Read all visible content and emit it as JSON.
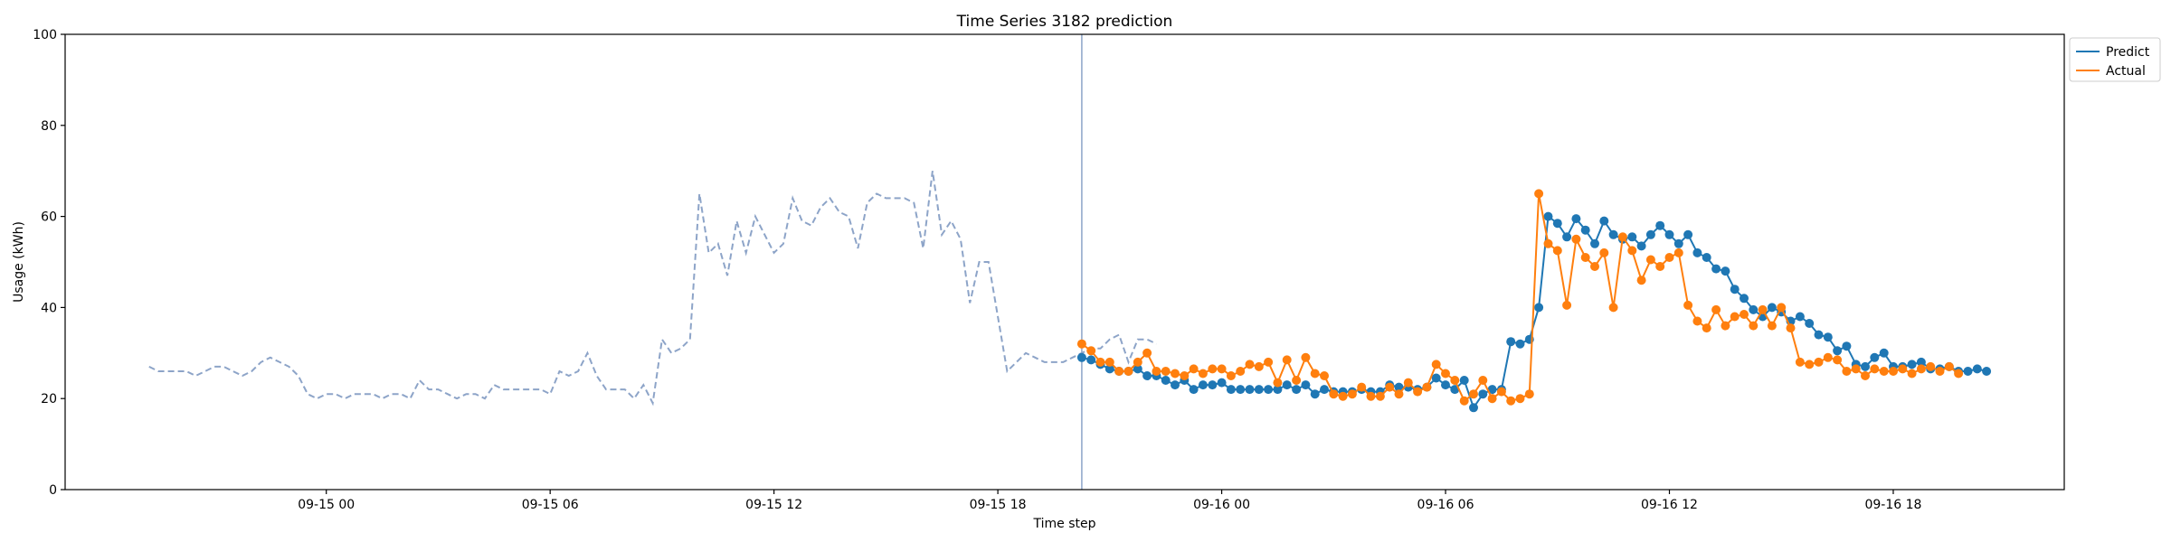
{
  "chart_data": {
    "type": "line",
    "title": "Time Series 3182 prediction",
    "xlabel": "Time step",
    "ylabel": "Usage (kWh)",
    "ylim": [
      0,
      100
    ],
    "yticks": [
      0,
      20,
      40,
      60,
      80,
      100
    ],
    "xlim": [
      "2023-09-14 17:00",
      "2023-09-16 22:35"
    ],
    "xticks": [
      {
        "label": "09-15 00",
        "t": "2023-09-15 00:00"
      },
      {
        "label": "09-15 06",
        "t": "2023-09-15 06:00"
      },
      {
        "label": "09-15 12",
        "t": "2023-09-15 12:00"
      },
      {
        "label": "09-15 18",
        "t": "2023-09-15 18:00"
      },
      {
        "label": "09-16 00",
        "t": "2023-09-16 00:00"
      },
      {
        "label": "09-16 06",
        "t": "2023-09-16 06:00"
      },
      {
        "label": "09-16 12",
        "t": "2023-09-16 12:00"
      },
      {
        "label": "09-16 18",
        "t": "2023-09-16 18:00"
      }
    ],
    "grid": false,
    "legend_position": "top-right",
    "cutoff": "2023-09-15 20:15",
    "history": {
      "start": "2023-09-14 19:15",
      "step_minutes": 15,
      "color": "#8da4c8",
      "style": "dashed",
      "values": [
        27,
        26,
        26,
        26,
        26,
        25,
        26,
        27,
        27,
        26,
        25,
        26,
        28,
        29,
        28,
        27,
        25,
        21,
        20,
        21,
        21,
        20,
        21,
        21,
        21,
        20,
        21,
        21,
        20,
        24,
        22,
        22,
        21,
        20,
        21,
        21,
        20,
        23,
        22,
        22,
        22,
        22,
        22,
        21,
        26,
        25,
        26,
        30,
        25,
        22,
        22,
        22,
        20,
        23,
        19,
        33,
        30,
        31,
        33,
        65,
        52,
        54,
        47,
        59,
        52,
        60,
        56,
        52,
        54,
        64,
        59,
        58,
        62,
        64,
        61,
        60,
        53,
        63,
        65,
        64,
        64,
        64,
        63,
        53,
        70,
        56,
        59,
        55,
        41,
        50,
        50,
        38,
        26,
        28,
        30,
        29,
        28,
        28,
        28,
        29,
        30,
        31,
        31,
        33,
        34,
        28,
        33,
        33,
        32
      ]
    },
    "series": [
      {
        "name": "Predict",
        "color": "#1f77b4",
        "start": "2023-09-15 20:15",
        "step_minutes": 15,
        "values": [
          29,
          28.5,
          27.5,
          26.5,
          26,
          26,
          26.5,
          25,
          25,
          24,
          23,
          24,
          22,
          23,
          23,
          23.5,
          22,
          22,
          22,
          22,
          22,
          22,
          23,
          22,
          23,
          21,
          22,
          21.5,
          21.5,
          21.5,
          22,
          21.5,
          21.5,
          23,
          22.5,
          22.5,
          22,
          22.5,
          24.5,
          23,
          22,
          24,
          18,
          21,
          22,
          22,
          32.5,
          32,
          33,
          40,
          60,
          58.5,
          55.5,
          59.5,
          57,
          54,
          59,
          56,
          55,
          55.5,
          53.5,
          56,
          58,
          56,
          54,
          56,
          52,
          51,
          48.5,
          48,
          44,
          42,
          39.5,
          38,
          40,
          39,
          37,
          38,
          36.5,
          34,
          33.5,
          30.5,
          31.5,
          27.5,
          27,
          29,
          30,
          27,
          27,
          27.5,
          28,
          26.5,
          26.5,
          27,
          26,
          26,
          26.5,
          26
        ]
      },
      {
        "name": "Actual",
        "color": "#ff7f0e",
        "start": "2023-09-15 20:15",
        "step_minutes": 15,
        "values": [
          32,
          30.5,
          28,
          28,
          26,
          26,
          28,
          30,
          26,
          26,
          25.5,
          25,
          26.5,
          25.5,
          26.5,
          26.5,
          25,
          26,
          27.5,
          27,
          28,
          23.5,
          28.5,
          24,
          29,
          25.5,
          25,
          21,
          20.5,
          21,
          22.5,
          20.5,
          20.5,
          22.5,
          21,
          23.5,
          21.5,
          22.5,
          27.5,
          25.5,
          24,
          19.5,
          21,
          24,
          20,
          21.5,
          19.5,
          20,
          21,
          65,
          54,
          52.5,
          40.5,
          55,
          51,
          49,
          52,
          40,
          55.5,
          52.5,
          46,
          50.5,
          49,
          51,
          52,
          40.5,
          37,
          35.5,
          39.5,
          36,
          38,
          38.5,
          36,
          39.5,
          36,
          40,
          35.5,
          28,
          27.5,
          28,
          29,
          28.5,
          26,
          26.5,
          25,
          26.5,
          26,
          26,
          26.5,
          25.5,
          26.5,
          27,
          26,
          27,
          25.5
        ]
      }
    ]
  }
}
